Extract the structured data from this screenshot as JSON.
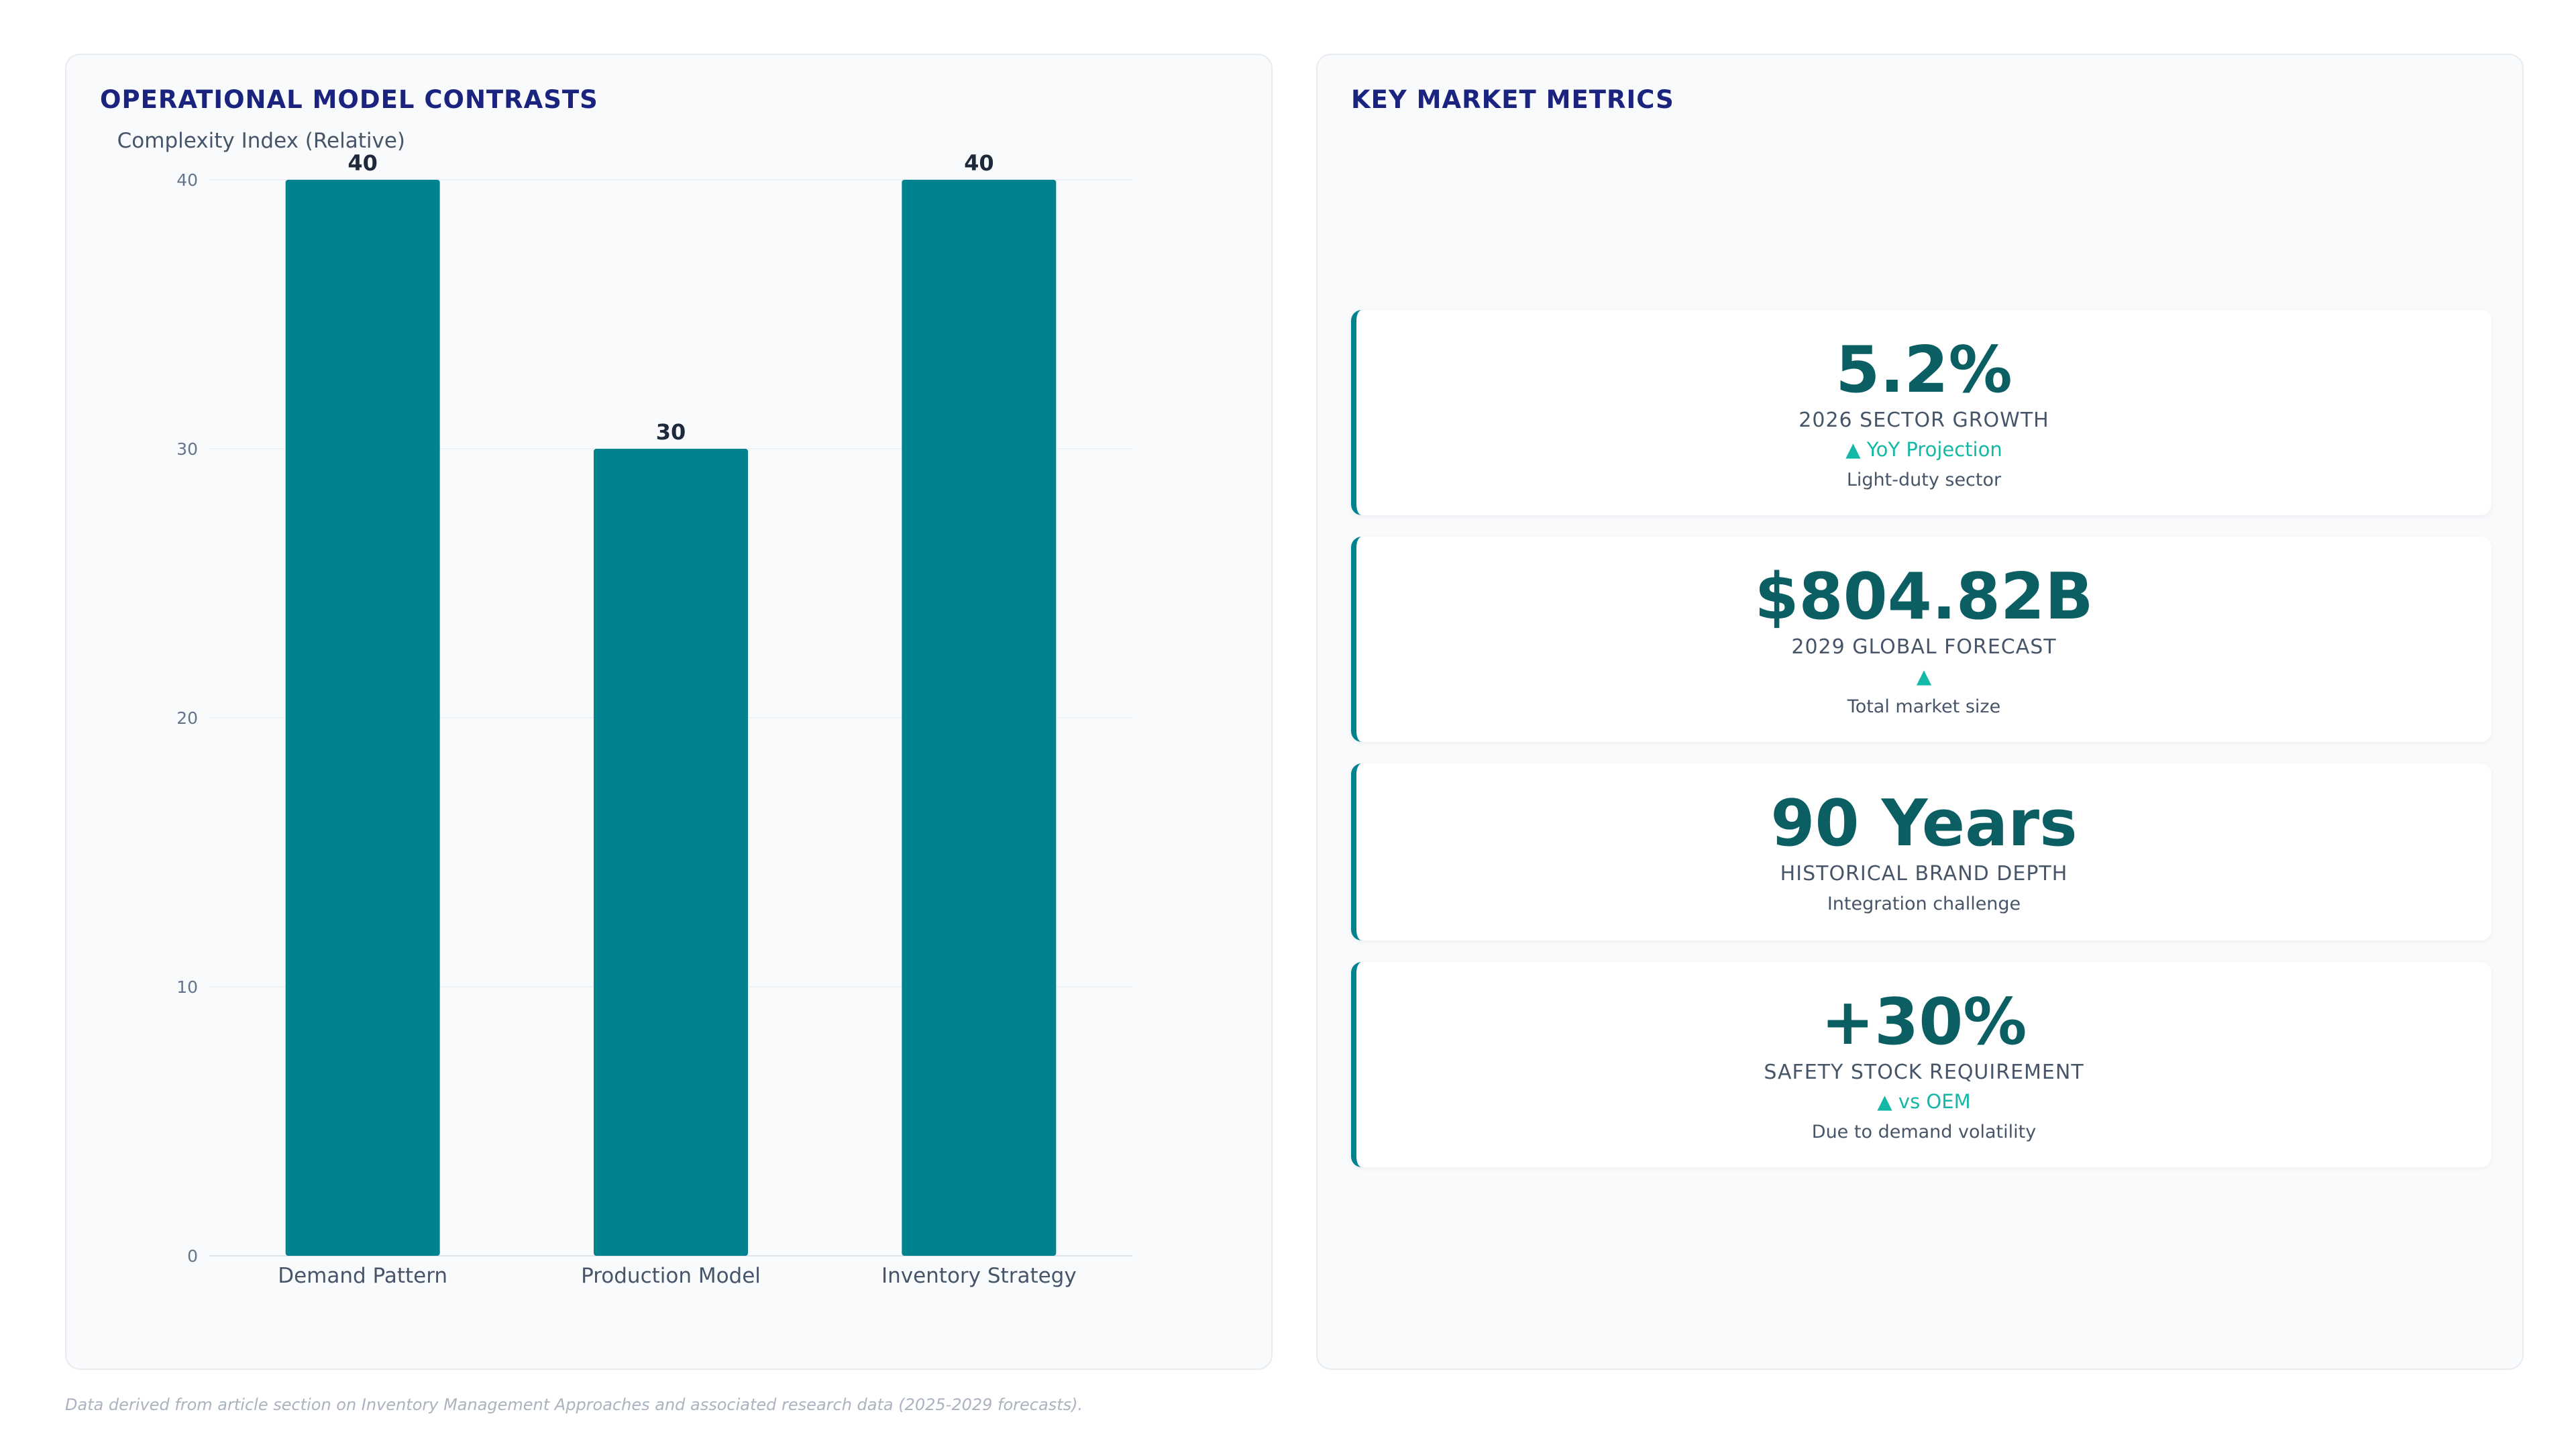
{
  "left_panel": {
    "title": "OPERATIONAL MODEL CONTRASTS"
  },
  "chart_data": {
    "type": "bar",
    "ylabel": "Complexity Index (Relative)",
    "categories": [
      "Demand Pattern",
      "Production Model",
      "Inventory Strategy"
    ],
    "values": [
      40,
      30,
      40
    ],
    "ylim": [
      0,
      40
    ],
    "yticks": [
      0,
      10,
      20,
      30,
      40
    ],
    "grid": true,
    "bar_color": "#00838f"
  },
  "right_panel": {
    "title": "KEY MARKET METRICS",
    "metrics": [
      {
        "value": "5.2%",
        "label": "2026 SECTOR GROWTH",
        "trend": "▲ YoY Projection",
        "note": "Light-duty sector"
      },
      {
        "value": "$804.82B",
        "label": "2029 GLOBAL FORECAST",
        "trend": "▲",
        "note": "Total market size"
      },
      {
        "value": "90 Years",
        "label": "HISTORICAL BRAND DEPTH",
        "trend": "",
        "note": "Integration challenge"
      },
      {
        "value": "+30%",
        "label": "SAFETY STOCK REQUIREMENT",
        "trend": "▲ vs OEM",
        "note": "Due to demand volatility"
      }
    ]
  },
  "footer": {
    "note": "Data derived from article section on Inventory Management Approaches and associated research data (2025-2029 forecasts)."
  },
  "colors": {
    "accent": "#00838f",
    "title": "#1a237e",
    "trend": "#14b8a6",
    "metric_value": "#0b5f63"
  }
}
